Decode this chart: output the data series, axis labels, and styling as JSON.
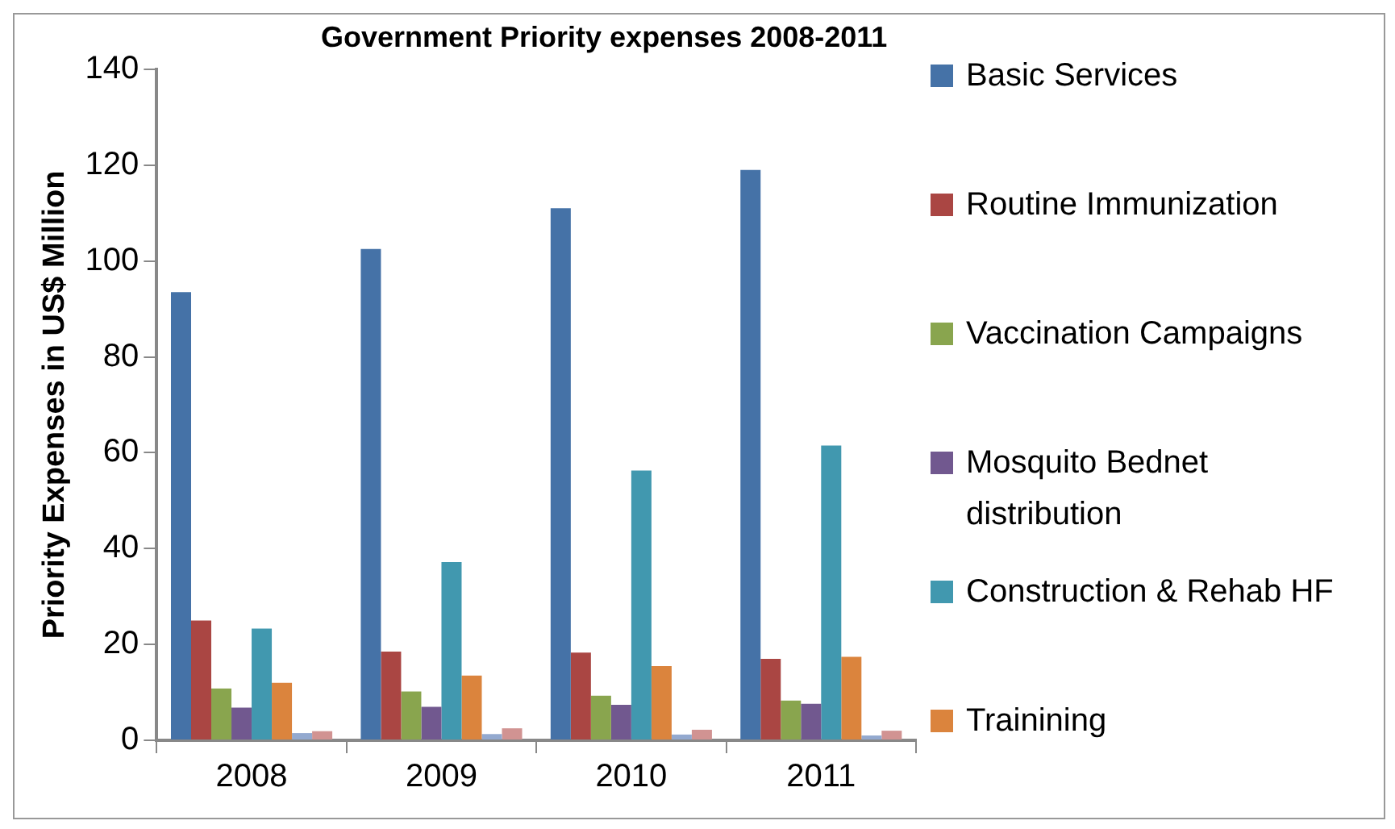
{
  "chart_data": {
    "type": "bar",
    "title": "Government Priority expenses 2008-2011",
    "ylabel": "Priority Expenses in US$ Million",
    "categories": [
      "2008",
      "2009",
      "2010",
      "2011"
    ],
    "series": [
      {
        "name": "Basic Services",
        "color": "#4572a7",
        "values": [
          93.5,
          102.5,
          111,
          119
        ]
      },
      {
        "name": "Routine Immunization",
        "color": "#aa4643",
        "values": [
          25,
          18.5,
          18.3,
          17
        ]
      },
      {
        "name": "Vaccination Campaigns",
        "color": "#89a54e",
        "values": [
          10.8,
          10.2,
          9.3,
          8.3
        ]
      },
      {
        "name": "Mosquito Bednet distribution",
        "color": "#71588f",
        "values": [
          6.8,
          7,
          7.4,
          7.6
        ]
      },
      {
        "name": "Construction & Rehab HF",
        "color": "#4198af",
        "values": [
          23.3,
          37.2,
          56.3,
          61.5
        ]
      },
      {
        "name": "Trainining",
        "color": "#db843d",
        "values": [
          12,
          13.5,
          15.5,
          17.4
        ]
      },
      {
        "color": "#93a9cf",
        "values": [
          1.5,
          1.3,
          1.2,
          1
        ]
      },
      {
        "color": "#d19392",
        "values": [
          1.9,
          2.5,
          2.2,
          2
        ]
      }
    ],
    "ylim": [
      0,
      140
    ],
    "yticks": [
      0,
      20,
      40,
      60,
      80,
      100,
      120,
      140
    ],
    "grid": false,
    "legend": "right"
  }
}
